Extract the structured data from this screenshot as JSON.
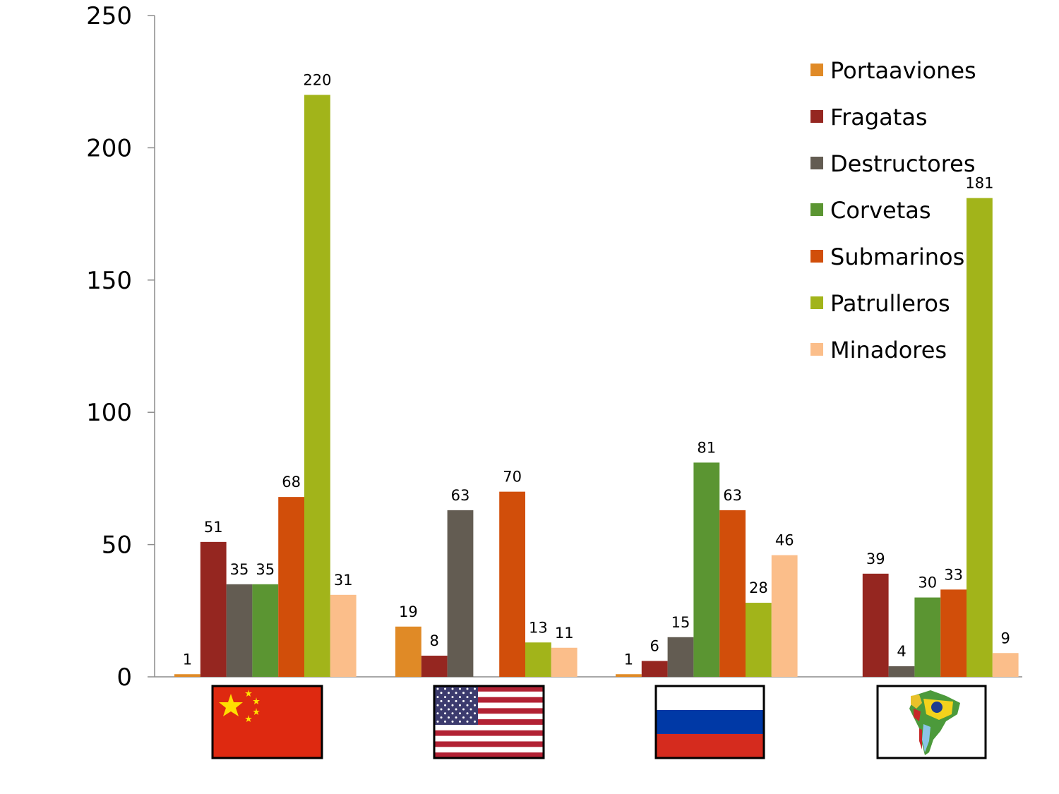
{
  "chart_data": {
    "type": "bar",
    "categories": [
      "China",
      "Estados Unidos",
      "Rusia",
      "Sudamérica"
    ],
    "category_icons": [
      "flag-china-icon",
      "flag-usa-icon",
      "flag-russia-icon",
      "south-america-flags-map-icon"
    ],
    "series": [
      {
        "name": "Portaaviones",
        "color": "#E08A26",
        "values": [
          1,
          19,
          1,
          null
        ]
      },
      {
        "name": "Fragatas",
        "color": "#952620",
        "values": [
          51,
          8,
          6,
          39
        ]
      },
      {
        "name": "Destructores",
        "color": "#635C52",
        "values": [
          35,
          63,
          15,
          4
        ]
      },
      {
        "name": "Corvetas",
        "color": "#5B9532",
        "values": [
          35,
          null,
          81,
          30
        ]
      },
      {
        "name": "Submarinos",
        "color": "#D14E0A",
        "values": [
          68,
          70,
          63,
          33
        ]
      },
      {
        "name": "Patrulleros",
        "color": "#A2B41A",
        "values": [
          220,
          13,
          28,
          181
        ]
      },
      {
        "name": "Minadores",
        "color": "#FBBE8A",
        "values": [
          31,
          11,
          46,
          9
        ]
      }
    ],
    "ylim": [
      0,
      250
    ],
    "yticks": [
      0,
      50,
      100,
      150,
      200,
      250
    ],
    "title": "",
    "xlabel": "",
    "ylabel": "",
    "grid": false,
    "legend": "top-right"
  }
}
